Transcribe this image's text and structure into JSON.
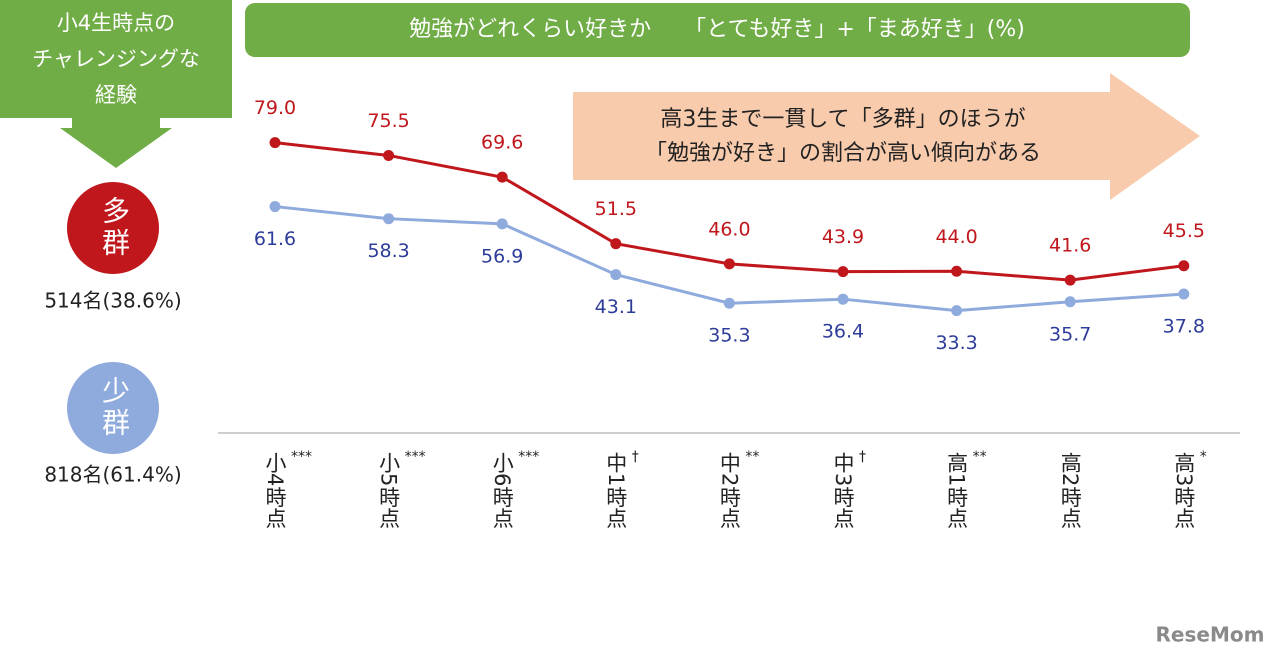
{
  "chart_data": {
    "type": "line",
    "title": "勉強がどれくらい好きか　　「とても好き」+「まあ好き」(%)",
    "side_label": [
      "小4生時点の",
      "チャレンジングな",
      "経験"
    ],
    "annotation": [
      "高3生まで一貫して「多群」のほうが",
      "「勉強が好き」の割合が高い傾向がある"
    ],
    "categories": [
      "小4時点",
      "小5時点",
      "小6時点",
      "中1時点",
      "中2時点",
      "中3時点",
      "高1時点",
      "高2時点",
      "高3時点"
    ],
    "significance": [
      "***",
      "***",
      "***",
      "†",
      "**",
      "†",
      "**",
      null,
      "*"
    ],
    "series": [
      {
        "name": "多群",
        "count": "514名(38.6%)",
        "color": "#c0171c",
        "label_color": "#c0171c",
        "values": [
          79.0,
          75.5,
          69.6,
          51.5,
          46.0,
          43.9,
          44.0,
          41.6,
          45.5
        ],
        "value_labels": [
          "79.0",
          "75.5",
          "69.6",
          "51.5",
          "46.0",
          "43.9",
          "44.0",
          "41.6",
          "45.5"
        ]
      },
      {
        "name": "少群",
        "count": "818名(61.4%)",
        "color": "#8faadc",
        "label_color": "#2e3c9a",
        "values": [
          61.6,
          58.3,
          56.9,
          43.1,
          35.3,
          36.4,
          33.3,
          35.7,
          37.8
        ],
        "value_labels": [
          "61.6",
          "58.3",
          "56.9",
          "43.1",
          "35.3",
          "36.4",
          "33.3",
          "35.7",
          "37.8"
        ]
      }
    ],
    "watermark": "ReseMom"
  }
}
